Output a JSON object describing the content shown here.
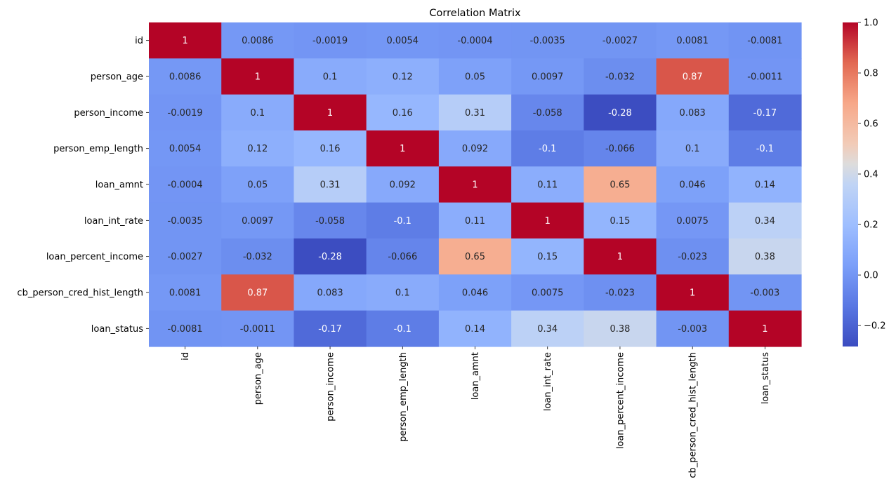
{
  "chart_data": {
    "type": "heatmap",
    "title": "Correlation Matrix",
    "xlabel": "",
    "ylabel": "",
    "colormap": "coolwarm",
    "x_categories": [
      "id",
      "person_age",
      "person_income",
      "person_emp_length",
      "loan_amnt",
      "loan_int_rate",
      "loan_percent_income",
      "cb_person_cred_hist_length",
      "loan_status"
    ],
    "y_categories": [
      "id",
      "person_age",
      "person_income",
      "person_emp_length",
      "loan_amnt",
      "loan_int_rate",
      "loan_percent_income",
      "cb_person_cred_hist_length",
      "loan_status"
    ],
    "labels": [
      [
        "1",
        "0.0086",
        "-0.0019",
        "0.0054",
        "-0.0004",
        "-0.0035",
        "-0.0027",
        "0.0081",
        "-0.0081"
      ],
      [
        "0.0086",
        "1",
        "0.1",
        "0.12",
        "0.05",
        "0.0097",
        "-0.032",
        "0.87",
        "-0.0011"
      ],
      [
        "-0.0019",
        "0.1",
        "1",
        "0.16",
        "0.31",
        "-0.058",
        "-0.28",
        "0.083",
        "-0.17"
      ],
      [
        "0.0054",
        "0.12",
        "0.16",
        "1",
        "0.092",
        "-0.1",
        "-0.066",
        "0.1",
        "-0.1"
      ],
      [
        "-0.0004",
        "0.05",
        "0.31",
        "0.092",
        "1",
        "0.11",
        "0.65",
        "0.046",
        "0.14"
      ],
      [
        "-0.0035",
        "0.0097",
        "-0.058",
        "-0.1",
        "0.11",
        "1",
        "0.15",
        "0.0075",
        "0.34"
      ],
      [
        "-0.0027",
        "-0.032",
        "-0.28",
        "-0.066",
        "0.65",
        "0.15",
        "1",
        "-0.023",
        "0.38"
      ],
      [
        "0.0081",
        "0.87",
        "0.083",
        "0.1",
        "0.046",
        "0.0075",
        "-0.023",
        "1",
        "-0.003"
      ],
      [
        "-0.0081",
        "-0.0011",
        "-0.17",
        "-0.1",
        "0.14",
        "0.34",
        "0.38",
        "-0.003",
        "1"
      ]
    ],
    "colorbar": {
      "range": [
        -0.283,
        1.0
      ],
      "ticks": [
        -0.2,
        0.0,
        0.2,
        0.4,
        0.6,
        0.8,
        1.0
      ],
      "tick_labels": [
        "−0.2",
        "0.0",
        "0.2",
        "0.4",
        "0.6",
        "0.8",
        "1.0"
      ],
      "placement": "right"
    },
    "grid": false,
    "annotated": true
  }
}
